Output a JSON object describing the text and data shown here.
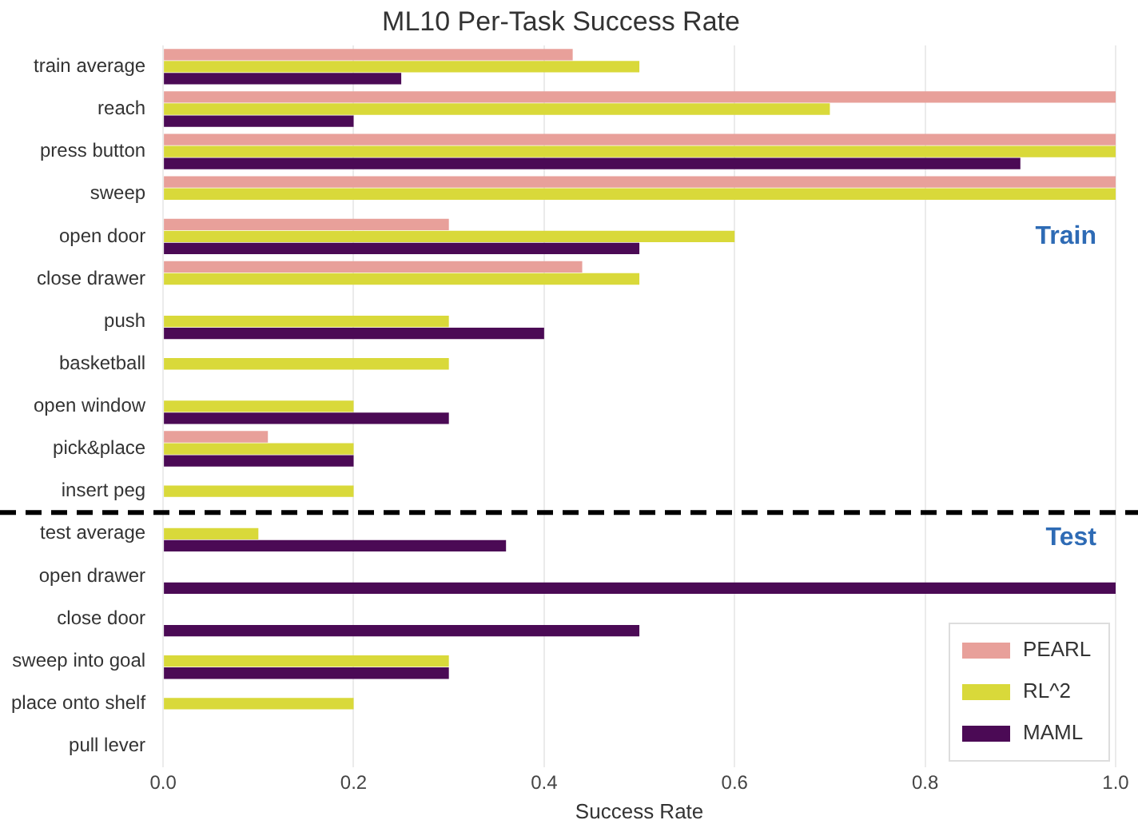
{
  "chart_data": {
    "type": "bar",
    "orientation": "horizontal",
    "title": "ML10 Per-Task Success Rate",
    "xlabel": "Success Rate",
    "categories": [
      "train average",
      "reach",
      "press button",
      "sweep",
      "open door",
      "close drawer",
      "push",
      "basketball",
      "open window",
      "pick&place",
      "insert peg",
      "test average",
      "open drawer",
      "close door",
      "sweep into goal",
      "place onto shelf",
      "pull lever"
    ],
    "series": [
      {
        "name": "PEARL",
        "color": "#e8a09a",
        "values": [
          0.43,
          1.0,
          1.0,
          1.0,
          0.3,
          0.44,
          0,
          0,
          0,
          0.11,
          0,
          0,
          0,
          0,
          0,
          0,
          0
        ]
      },
      {
        "name": "RL^2",
        "color": "#d9d93a",
        "values": [
          0.5,
          0.7,
          1.0,
          1.0,
          0.6,
          0.5,
          0.3,
          0.3,
          0.2,
          0.2,
          0.2,
          0.1,
          0,
          0,
          0.3,
          0.2,
          0
        ]
      },
      {
        "name": "MAML",
        "color": "#4b0a55",
        "values": [
          0.25,
          0.2,
          0.9,
          0,
          0.5,
          0,
          0.4,
          0,
          0.3,
          0.2,
          0,
          0.36,
          1.0,
          0.5,
          0.3,
          0,
          0
        ]
      }
    ],
    "xlim": [
      0,
      1
    ],
    "xticks": [
      {
        "value": 0,
        "label": "0.0"
      },
      {
        "value": 0.2,
        "label": "0.2"
      },
      {
        "value": 0.4,
        "label": "0.4"
      },
      {
        "value": 0.6,
        "label": "0.6"
      },
      {
        "value": 0.8,
        "label": "0.8"
      },
      {
        "value": 1,
        "label": "1.0"
      }
    ],
    "ref_lines": [
      {
        "axis": "y",
        "value": "test average",
        "color": "#000000",
        "line_style": "dashed"
      }
    ],
    "annotations": [
      "Train",
      "Test"
    ],
    "grid": "x",
    "legend": "bottom right"
  }
}
